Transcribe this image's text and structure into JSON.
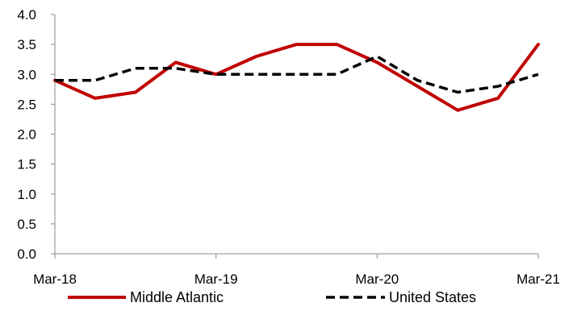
{
  "chart_data": {
    "type": "line",
    "x": [
      "Mar-18",
      "Jun-18",
      "Sep-18",
      "Dec-18",
      "Mar-19",
      "Jun-19",
      "Sep-19",
      "Dec-19",
      "Mar-20",
      "Jun-20",
      "Sep-20",
      "Dec-20",
      "Mar-21"
    ],
    "x_tick_labels": [
      "Mar-18",
      "Mar-19",
      "Mar-20",
      "Mar-21"
    ],
    "y_tick_labels": [
      "0.0",
      "0.5",
      "1.0",
      "1.5",
      "2.0",
      "2.5",
      "3.0",
      "3.5",
      "4.0"
    ],
    "ylim": [
      0,
      4.0
    ],
    "grid": false,
    "legend_position": "bottom",
    "series": [
      {
        "name": "Middle Atlantic",
        "color": "#c00000",
        "style": "solid",
        "values": [
          2.9,
          2.6,
          2.7,
          3.2,
          3.0,
          3.3,
          3.5,
          3.5,
          3.2,
          2.8,
          2.4,
          2.6,
          3.5
        ]
      },
      {
        "name": "United States",
        "color": "#000000",
        "style": "dashed",
        "values": [
          2.9,
          2.9,
          3.1,
          3.1,
          3.0,
          3.0,
          3.0,
          3.0,
          3.3,
          2.9,
          2.7,
          2.8,
          3.0
        ]
      }
    ]
  }
}
